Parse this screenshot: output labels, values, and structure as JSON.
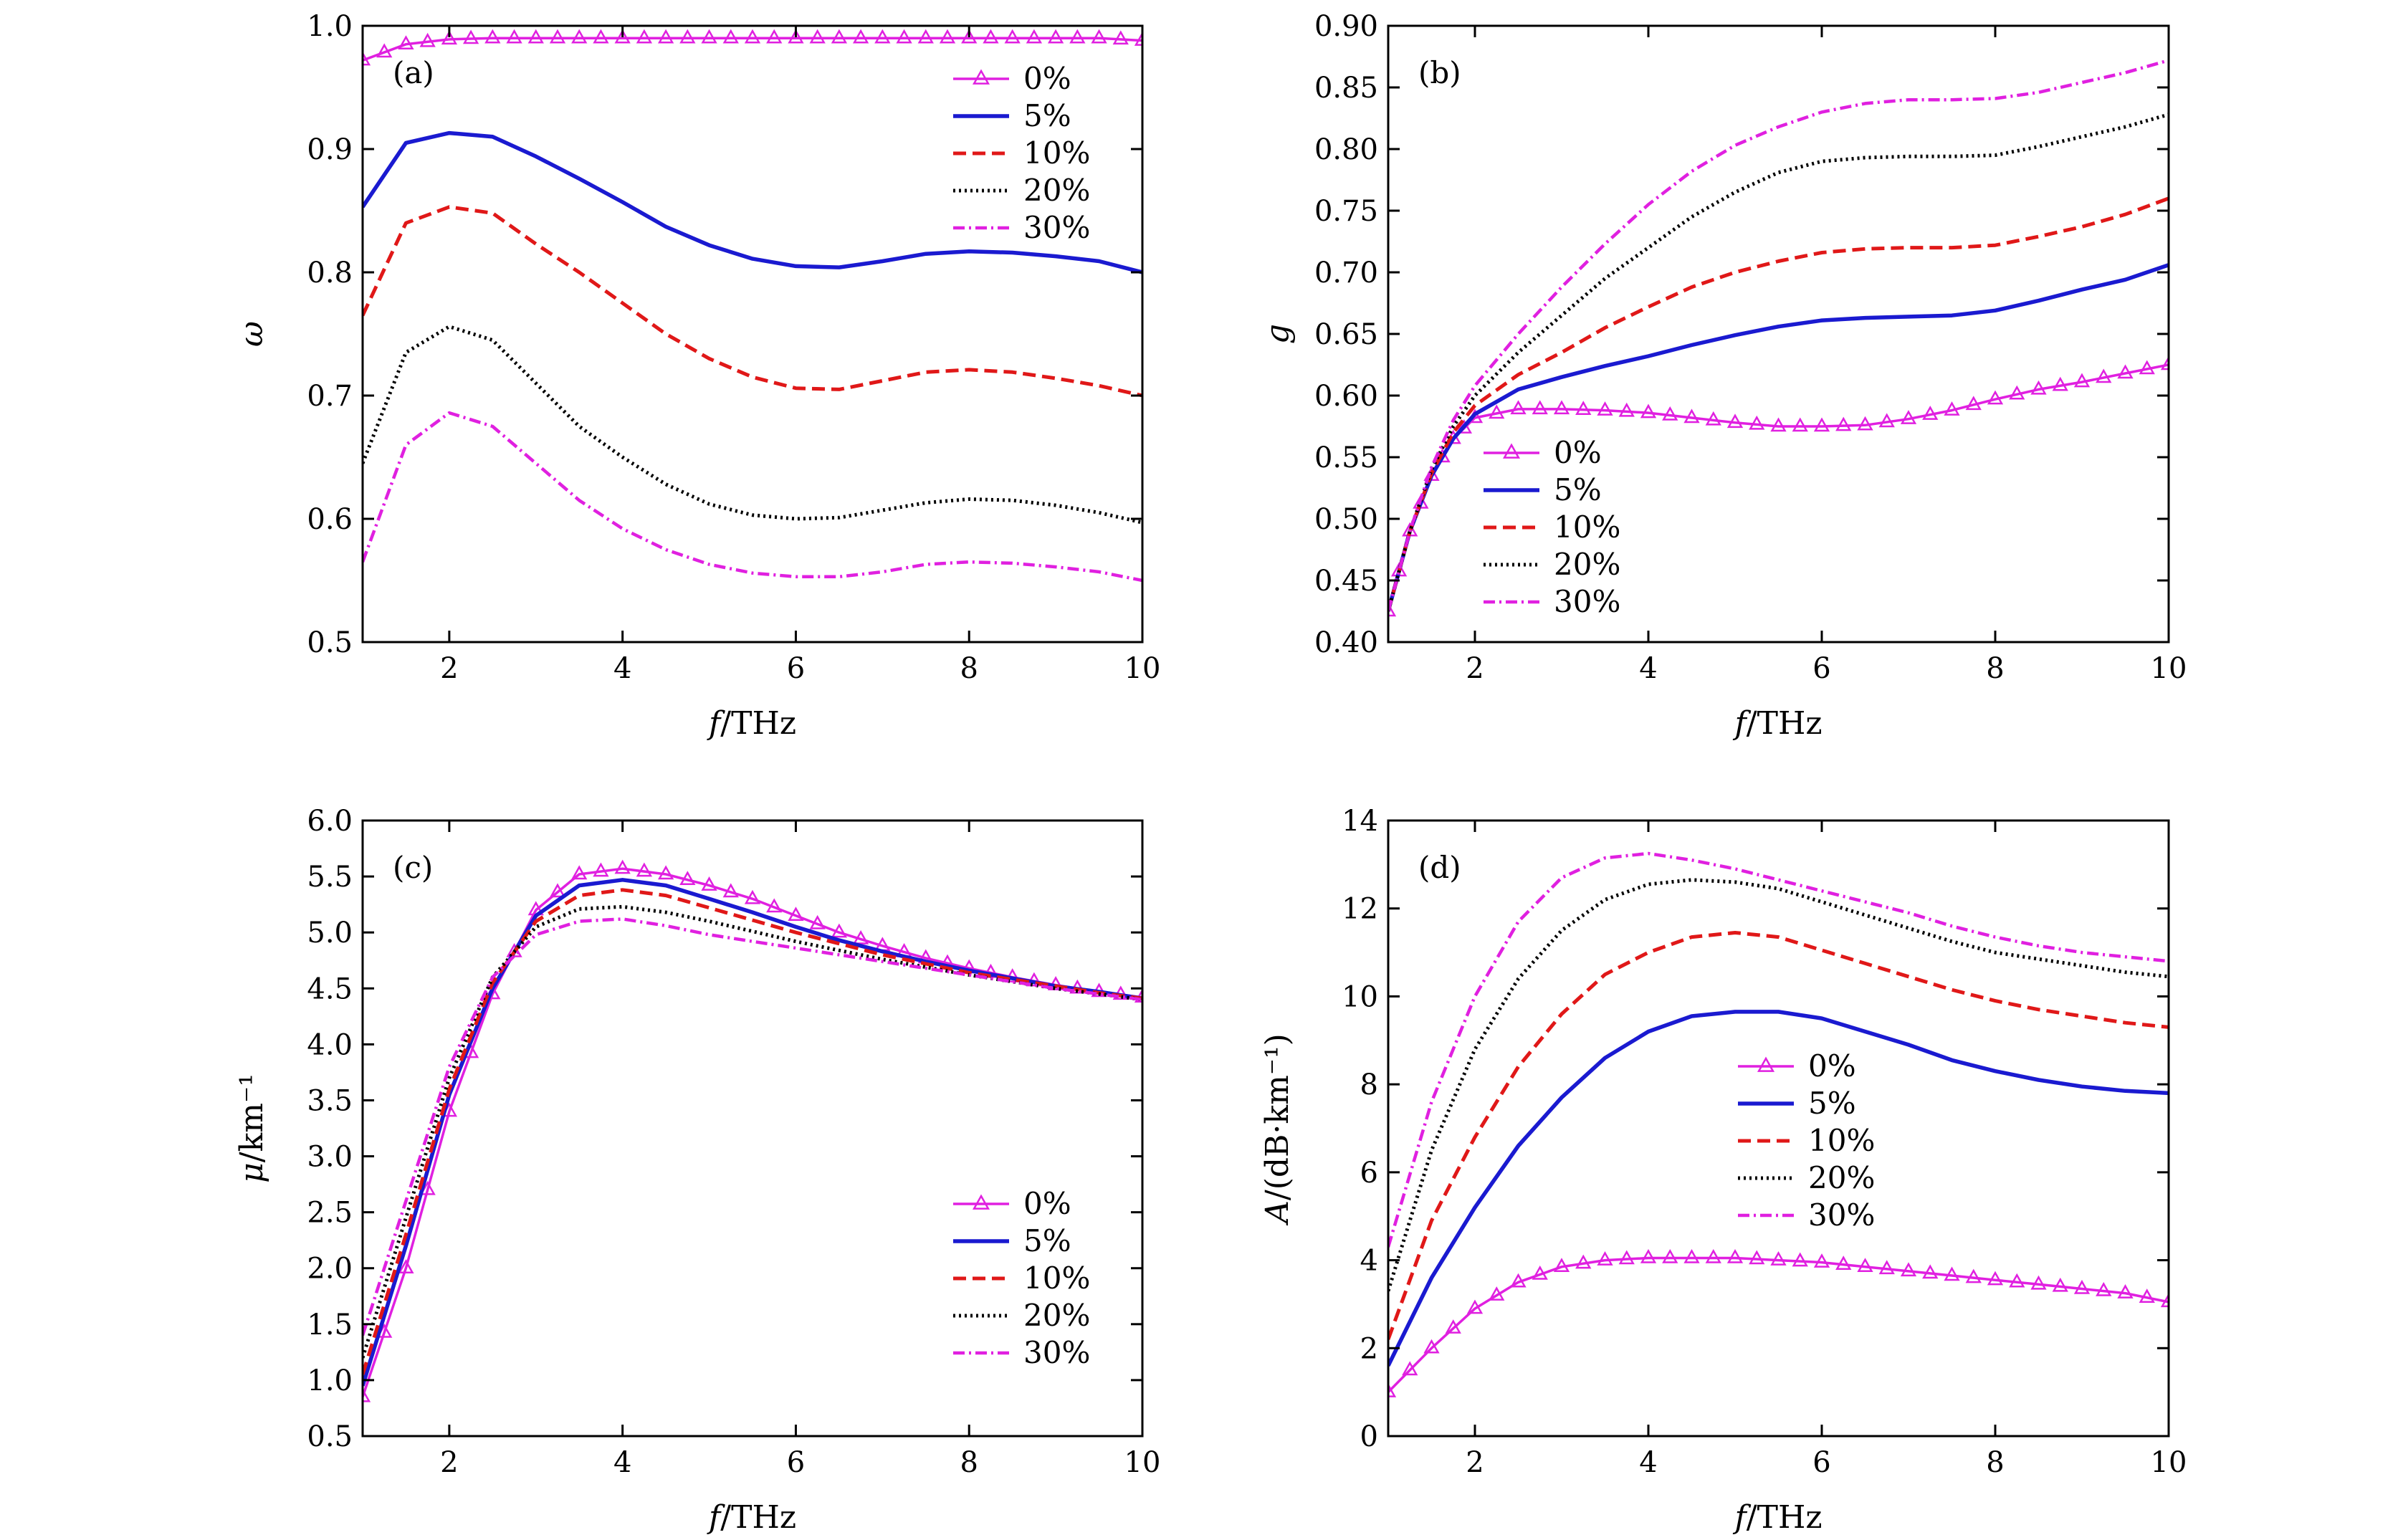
{
  "figure": {
    "x_unit_label_italic": "f",
    "x_unit_label_rest": "/THz"
  },
  "colors": {
    "c0": "#e020e0",
    "c5": "#1a1ad0",
    "c10": "#e01818",
    "c20": "#000000",
    "c30": "#e020e0"
  },
  "chart_data": [
    {
      "id": "a",
      "type": "line",
      "panel_label": "(a)",
      "xlabel": "f/THz",
      "ylabel": "ω",
      "xlim": [
        1,
        10
      ],
      "ylim": [
        0.5,
        1.0
      ],
      "xticks": [
        2,
        4,
        6,
        8,
        10
      ],
      "yticks": [
        0.5,
        0.6,
        0.7,
        0.8,
        0.9,
        1.0
      ],
      "ytick_decimals": 1,
      "legend_position": "top-right",
      "x": [
        1,
        1.5,
        2,
        2.5,
        3,
        3.5,
        4,
        4.5,
        5,
        5.5,
        6,
        6.5,
        7,
        7.5,
        8,
        8.5,
        9,
        9.5,
        10
      ],
      "series": [
        {
          "name": "0%",
          "style": "triangle",
          "values": [
            0.972,
            0.985,
            0.989,
            0.99,
            0.99,
            0.99,
            0.99,
            0.99,
            0.99,
            0.99,
            0.99,
            0.99,
            0.99,
            0.99,
            0.99,
            0.99,
            0.99,
            0.99,
            0.988
          ]
        },
        {
          "name": "5%",
          "style": "solid",
          "values": [
            0.853,
            0.905,
            0.913,
            0.91,
            0.894,
            0.876,
            0.857,
            0.837,
            0.822,
            0.811,
            0.805,
            0.804,
            0.809,
            0.815,
            0.817,
            0.816,
            0.813,
            0.809,
            0.8
          ]
        },
        {
          "name": "10%",
          "style": "dashed",
          "values": [
            0.765,
            0.84,
            0.853,
            0.848,
            0.823,
            0.8,
            0.775,
            0.75,
            0.73,
            0.715,
            0.706,
            0.705,
            0.712,
            0.719,
            0.721,
            0.719,
            0.714,
            0.708,
            0.7
          ]
        },
        {
          "name": "20%",
          "style": "dotted",
          "values": [
            0.645,
            0.735,
            0.756,
            0.745,
            0.71,
            0.675,
            0.65,
            0.628,
            0.612,
            0.603,
            0.6,
            0.601,
            0.607,
            0.613,
            0.616,
            0.615,
            0.611,
            0.605,
            0.597
          ]
        },
        {
          "name": "30%",
          "style": "dashdot",
          "values": [
            0.565,
            0.66,
            0.686,
            0.675,
            0.645,
            0.615,
            0.592,
            0.575,
            0.563,
            0.556,
            0.553,
            0.553,
            0.557,
            0.563,
            0.565,
            0.564,
            0.561,
            0.557,
            0.55
          ]
        }
      ]
    },
    {
      "id": "b",
      "type": "line",
      "panel_label": "(b)",
      "xlabel": "f/THz",
      "ylabel": "g",
      "xlim": [
        1,
        10
      ],
      "ylim": [
        0.4,
        0.9
      ],
      "xticks": [
        2,
        4,
        6,
        8,
        10
      ],
      "yticks": [
        0.4,
        0.45,
        0.5,
        0.55,
        0.6,
        0.65,
        0.7,
        0.75,
        0.8,
        0.85,
        0.9
      ],
      "ytick_decimals": 2,
      "legend_position": "lower-left",
      "x": [
        1,
        1.25,
        1.5,
        1.75,
        2,
        2.5,
        3,
        3.5,
        4,
        4.5,
        5,
        5.5,
        6,
        6.5,
        7,
        7.5,
        8,
        8.5,
        9,
        9.5,
        10
      ],
      "series": [
        {
          "name": "0%",
          "style": "triangle",
          "values": [
            0.425,
            0.49,
            0.535,
            0.565,
            0.582,
            0.589,
            0.589,
            0.588,
            0.586,
            0.582,
            0.578,
            0.575,
            0.575,
            0.576,
            0.581,
            0.588,
            0.597,
            0.605,
            0.611,
            0.618,
            0.625
          ]
        },
        {
          "name": "5%",
          "style": "solid",
          "values": [
            0.425,
            0.49,
            0.535,
            0.565,
            0.585,
            0.605,
            0.615,
            0.624,
            0.632,
            0.641,
            0.649,
            0.656,
            0.661,
            0.663,
            0.664,
            0.665,
            0.669,
            0.677,
            0.686,
            0.694,
            0.706
          ]
        },
        {
          "name": "10%",
          "style": "dashed",
          "values": [
            0.425,
            0.49,
            0.537,
            0.57,
            0.592,
            0.617,
            0.635,
            0.655,
            0.672,
            0.688,
            0.7,
            0.709,
            0.716,
            0.719,
            0.72,
            0.72,
            0.722,
            0.729,
            0.737,
            0.747,
            0.76
          ]
        },
        {
          "name": "20%",
          "style": "dotted",
          "values": [
            0.425,
            0.49,
            0.54,
            0.575,
            0.6,
            0.635,
            0.665,
            0.695,
            0.72,
            0.745,
            0.765,
            0.781,
            0.79,
            0.793,
            0.794,
            0.794,
            0.795,
            0.802,
            0.81,
            0.818,
            0.828
          ]
        },
        {
          "name": "30%",
          "style": "dashdot",
          "values": [
            0.425,
            0.49,
            0.542,
            0.58,
            0.608,
            0.65,
            0.688,
            0.723,
            0.755,
            0.782,
            0.803,
            0.818,
            0.83,
            0.837,
            0.84,
            0.84,
            0.841,
            0.846,
            0.854,
            0.862,
            0.872
          ]
        }
      ]
    },
    {
      "id": "c",
      "type": "line",
      "panel_label": "(c)",
      "xlabel": "f/THz",
      "ylabel": "μ/km⁻¹",
      "xlim": [
        1,
        10
      ],
      "ylim": [
        0.5,
        6.0
      ],
      "xticks": [
        2,
        4,
        6,
        8,
        10
      ],
      "yticks": [
        0.5,
        1.0,
        1.5,
        2.0,
        2.5,
        3.0,
        3.5,
        4.0,
        4.5,
        5.0,
        5.5,
        6.0
      ],
      "ytick_decimals": 1,
      "legend_position": "lower-right",
      "x": [
        1,
        1.5,
        2,
        2.5,
        3,
        3.5,
        4,
        4.5,
        5,
        5.5,
        6,
        6.5,
        7,
        7.5,
        8,
        8.5,
        9,
        9.5,
        10
      ],
      "series": [
        {
          "name": "0%",
          "style": "triangle",
          "values": [
            0.85,
            2.0,
            3.4,
            4.45,
            5.2,
            5.52,
            5.57,
            5.52,
            5.42,
            5.3,
            5.15,
            5.0,
            4.88,
            4.77,
            4.68,
            4.6,
            4.53,
            4.47,
            4.42
          ]
        },
        {
          "name": "5%",
          "style": "solid",
          "values": [
            0.95,
            2.2,
            3.55,
            4.5,
            5.15,
            5.42,
            5.47,
            5.42,
            5.3,
            5.18,
            5.05,
            4.93,
            4.83,
            4.74,
            4.66,
            4.59,
            4.52,
            4.47,
            4.41
          ]
        },
        {
          "name": "10%",
          "style": "dashed",
          "values": [
            1.05,
            2.3,
            3.6,
            4.55,
            5.1,
            5.33,
            5.38,
            5.33,
            5.22,
            5.11,
            5.0,
            4.9,
            4.8,
            4.72,
            4.64,
            4.58,
            4.52,
            4.46,
            4.41
          ]
        },
        {
          "name": "20%",
          "style": "dotted",
          "values": [
            1.2,
            2.45,
            3.7,
            4.6,
            5.05,
            5.21,
            5.23,
            5.18,
            5.1,
            5.01,
            4.92,
            4.84,
            4.76,
            4.69,
            4.62,
            4.56,
            4.5,
            4.45,
            4.4
          ]
        },
        {
          "name": "30%",
          "style": "dashdot",
          "values": [
            1.4,
            2.6,
            3.8,
            4.6,
            4.98,
            5.1,
            5.12,
            5.06,
            4.98,
            4.92,
            4.86,
            4.8,
            4.74,
            4.68,
            4.62,
            4.56,
            4.5,
            4.45,
            4.4
          ]
        }
      ]
    },
    {
      "id": "d",
      "type": "line",
      "panel_label": "(d)",
      "xlabel": "f/THz",
      "ylabel": "A/(dB·km⁻¹)",
      "xlim": [
        1,
        10
      ],
      "ylim": [
        0,
        14
      ],
      "xticks": [
        2,
        4,
        6,
        8,
        10
      ],
      "yticks": [
        0,
        2,
        4,
        6,
        8,
        10,
        12,
        14
      ],
      "ytick_decimals": 0,
      "legend_position": "middle-center",
      "x": [
        1,
        1.5,
        2,
        2.5,
        3,
        3.5,
        4,
        4.5,
        5,
        5.5,
        6,
        6.5,
        7,
        7.5,
        8,
        8.5,
        9,
        9.5,
        10
      ],
      "series": [
        {
          "name": "0%",
          "style": "triangle",
          "values": [
            1.0,
            2.0,
            2.9,
            3.5,
            3.85,
            4.0,
            4.05,
            4.05,
            4.05,
            4.0,
            3.95,
            3.85,
            3.75,
            3.65,
            3.55,
            3.45,
            3.35,
            3.25,
            3.05
          ]
        },
        {
          "name": "5%",
          "style": "solid",
          "values": [
            1.6,
            3.6,
            5.2,
            6.6,
            7.7,
            8.6,
            9.2,
            9.55,
            9.65,
            9.65,
            9.5,
            9.2,
            8.9,
            8.55,
            8.3,
            8.1,
            7.95,
            7.85,
            7.8
          ]
        },
        {
          "name": "10%",
          "style": "dashed",
          "values": [
            2.2,
            4.9,
            6.8,
            8.4,
            9.6,
            10.5,
            11.0,
            11.35,
            11.45,
            11.35,
            11.05,
            10.75,
            10.45,
            10.15,
            9.9,
            9.7,
            9.55,
            9.4,
            9.3
          ]
        },
        {
          "name": "20%",
          "style": "dotted",
          "values": [
            3.3,
            6.5,
            8.8,
            10.4,
            11.5,
            12.2,
            12.55,
            12.65,
            12.6,
            12.45,
            12.15,
            11.85,
            11.55,
            11.25,
            11.0,
            10.85,
            10.7,
            10.55,
            10.45
          ]
        },
        {
          "name": "30%",
          "style": "dashdot",
          "values": [
            4.3,
            7.6,
            10.0,
            11.7,
            12.7,
            13.15,
            13.25,
            13.1,
            12.9,
            12.65,
            12.4,
            12.15,
            11.9,
            11.6,
            11.35,
            11.15,
            11.0,
            10.9,
            10.8
          ]
        }
      ]
    }
  ]
}
